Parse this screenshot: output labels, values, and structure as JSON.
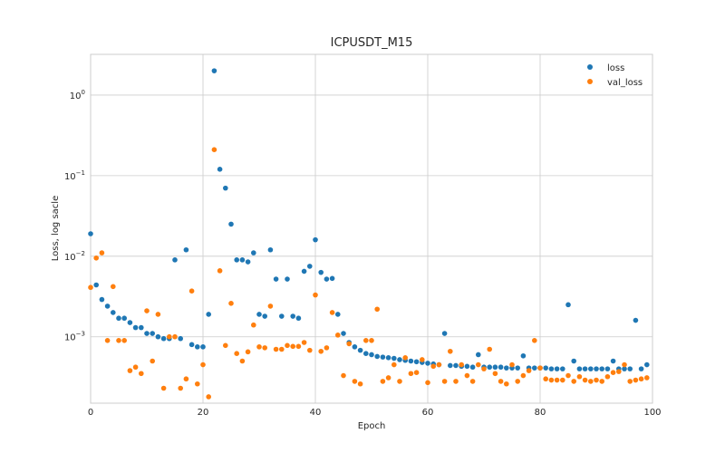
{
  "chart_data": {
    "type": "scatter",
    "title": "ICPUSDT_M15",
    "xlabel": "Epoch",
    "ylabel": "Loss, log sacle",
    "xlim": [
      0,
      100
    ],
    "ylim": [
      0.00015,
      3.2
    ],
    "yscale": "log",
    "x_ticks": [
      0,
      20,
      40,
      60,
      80,
      100
    ],
    "y_ticks": [
      0.001,
      0.01,
      0.1,
      1
    ],
    "grid": true,
    "legend_position": "top-right",
    "series": [
      {
        "name": "loss",
        "color": "#1f77b4",
        "x": [
          0,
          1,
          2,
          3,
          4,
          5,
          6,
          7,
          8,
          9,
          10,
          11,
          12,
          13,
          14,
          15,
          16,
          17,
          18,
          19,
          20,
          21,
          22,
          23,
          24,
          25,
          26,
          27,
          28,
          29,
          30,
          31,
          32,
          33,
          34,
          35,
          36,
          37,
          38,
          39,
          40,
          41,
          42,
          43,
          44,
          45,
          46,
          47,
          48,
          49,
          50,
          51,
          52,
          53,
          54,
          55,
          56,
          57,
          58,
          59,
          60,
          61,
          62,
          63,
          64,
          65,
          66,
          67,
          68,
          69,
          70,
          71,
          72,
          73,
          74,
          75,
          76,
          77,
          78,
          79,
          80,
          81,
          82,
          83,
          84,
          85,
          86,
          87,
          88,
          89,
          90,
          91,
          92,
          93,
          94,
          95,
          96,
          97,
          98,
          99
        ],
        "values": [
          0.019,
          0.0044,
          0.0029,
          0.0024,
          0.002,
          0.0017,
          0.0017,
          0.0015,
          0.0013,
          0.0013,
          0.0011,
          0.0011,
          0.001,
          0.00095,
          0.00095,
          0.009,
          0.00095,
          0.012,
          0.0008,
          0.00075,
          0.00075,
          0.0019,
          2.0,
          0.12,
          0.07,
          0.025,
          0.009,
          0.009,
          0.0085,
          0.011,
          0.0019,
          0.0018,
          0.012,
          0.0052,
          0.0018,
          0.0052,
          0.0018,
          0.0017,
          0.0065,
          0.0075,
          0.016,
          0.0063,
          0.0052,
          0.0053,
          0.0019,
          0.0011,
          0.00085,
          0.00075,
          0.00068,
          0.00062,
          0.0006,
          0.00057,
          0.00056,
          0.00055,
          0.00054,
          0.00052,
          0.00051,
          0.0005,
          0.00049,
          0.00048,
          0.00047,
          0.00046,
          0.00045,
          0.0011,
          0.00044,
          0.00044,
          0.00043,
          0.00043,
          0.00042,
          0.0006,
          0.00042,
          0.00042,
          0.00042,
          0.00042,
          0.00041,
          0.00041,
          0.00041,
          0.00058,
          0.00041,
          0.00041,
          0.00041,
          0.00041,
          0.0004,
          0.0004,
          0.0004,
          0.0025,
          0.0005,
          0.0004,
          0.0004,
          0.0004,
          0.0004,
          0.0004,
          0.0004,
          0.0005,
          0.0004,
          0.0004,
          0.0004,
          0.0016,
          0.0004,
          0.00045
        ]
      },
      {
        "name": "val_loss",
        "color": "#ff7f0e",
        "x": [
          0,
          1,
          2,
          3,
          4,
          5,
          6,
          7,
          8,
          9,
          10,
          11,
          12,
          13,
          14,
          15,
          16,
          17,
          18,
          19,
          20,
          21,
          22,
          23,
          24,
          25,
          26,
          27,
          28,
          29,
          30,
          31,
          32,
          33,
          34,
          35,
          36,
          37,
          38,
          39,
          40,
          41,
          42,
          43,
          44,
          45,
          46,
          47,
          48,
          49,
          50,
          51,
          52,
          53,
          54,
          55,
          56,
          57,
          58,
          59,
          60,
          61,
          62,
          63,
          64,
          65,
          66,
          67,
          68,
          69,
          70,
          71,
          72,
          73,
          74,
          75,
          76,
          77,
          78,
          79,
          80,
          81,
          82,
          83,
          84,
          85,
          86,
          87,
          88,
          89,
          90,
          91,
          92,
          93,
          94,
          95,
          96,
          97,
          98,
          99
        ],
        "values": [
          0.0041,
          0.0095,
          0.011,
          0.0009,
          0.0042,
          0.0009,
          0.0009,
          0.00038,
          0.00042,
          0.00035,
          0.0021,
          0.0005,
          0.0019,
          0.00023,
          0.001,
          0.001,
          0.00023,
          0.0003,
          0.0037,
          0.00026,
          0.00045,
          0.00018,
          0.21,
          0.0066,
          0.00078,
          0.0026,
          0.00062,
          0.0005,
          0.00065,
          0.0014,
          0.00075,
          0.00073,
          0.0024,
          0.0007,
          0.0007,
          0.00078,
          0.00076,
          0.00076,
          0.00085,
          0.00068,
          0.0033,
          0.00066,
          0.00073,
          0.002,
          0.00105,
          0.00033,
          0.00082,
          0.00028,
          0.00026,
          0.0009,
          0.0009,
          0.0022,
          0.00028,
          0.00031,
          0.00045,
          0.00028,
          0.00055,
          0.00035,
          0.00036,
          0.00052,
          0.00027,
          0.00043,
          0.00045,
          0.00028,
          0.00066,
          0.00028,
          0.00045,
          0.00033,
          0.00028,
          0.00045,
          0.0004,
          0.0007,
          0.00035,
          0.00028,
          0.00026,
          0.00045,
          0.00028,
          0.00033,
          0.00038,
          0.0009,
          0.00041,
          0.0003,
          0.00029,
          0.00029,
          0.00029,
          0.00033,
          0.00028,
          0.00032,
          0.00029,
          0.00028,
          0.00029,
          0.00028,
          0.00032,
          0.00036,
          0.00037,
          0.00045,
          0.00028,
          0.00029,
          0.0003,
          0.00031
        ]
      }
    ]
  }
}
